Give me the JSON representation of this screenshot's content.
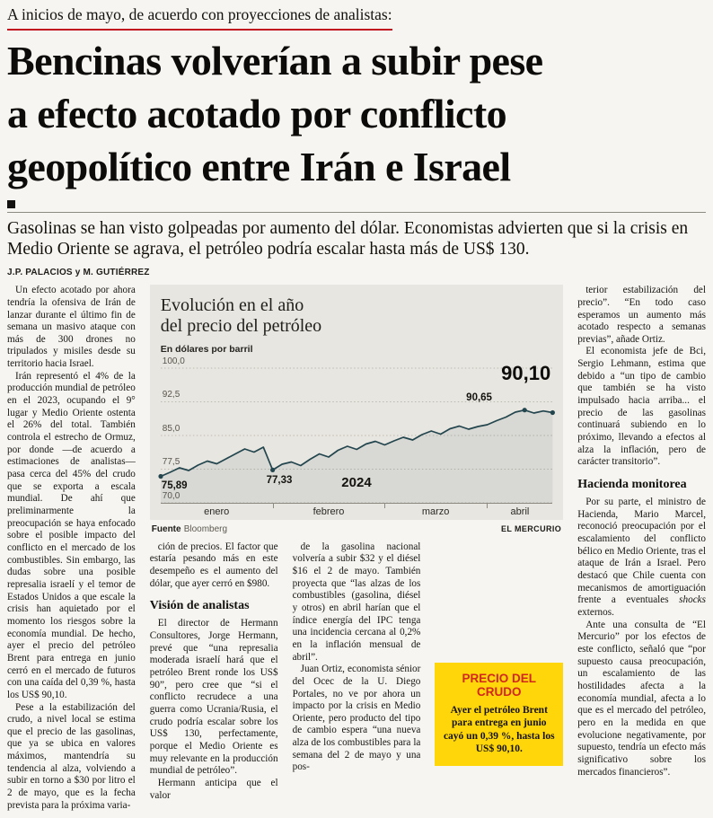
{
  "header": {
    "kicker": "A inicios de mayo, de acuerdo con proyecciones de analistas:",
    "headline_lines": [
      "Bencinas volverían a subir pese",
      "a efecto acotado por conflicto",
      "geopolítico entre Irán e Israel"
    ],
    "lead": "Gasolinas se han visto golpeadas por aumento del dólar. Economistas advierten que si la crisis en Medio Oriente se agrava, el petróleo podría escalar hasta más de US$ 130.",
    "byline": "J.P. PALACIOS y M. GUTIÉRREZ"
  },
  "body": {
    "col1": [
      "Un efecto acotado por ahora tendría la ofensiva de Irán de lanzar durante el último fin de semana un masivo ataque con más de 300 drones no tripulados y misiles desde su territorio hacia Israel.",
      "Irán representó el 4% de la producción mundial de petróleo en el 2023, ocupando el 9° lugar y Medio Oriente ostenta el 26% del total. También controla el estrecho de Ormuz, por donde —de acuerdo a estimaciones de analistas— pasa cerca del 45% del crudo que se exporta a escala mundial. De ahí que preliminarmente la preocupación se haya enfocado sobre el posible impacto del conflicto en el mercado de los combustibles. Sin embargo, las dudas sobre una posible represalia israelí y el temor de Estados Unidos a que escale la crisis han aquietado por el momento los riesgos sobre la economía mundial. De hecho, ayer el precio del petróleo Brent para entrega en junio cerró en el mercado de futuros con una caída del 0,39 %, hasta los US$ 90,10.",
      "Pese a la estabilización del crudo, a nivel local se estima que el precio de las gasolinas, que ya se ubica en valores máximos, mantendría su tendencia al alza, volviendo a subir en torno a $30 por litro el 2 de mayo, que es la fecha prevista para la próxima varia-"
    ],
    "col2": {
      "p1": "ción de precios. El factor que estaría pesando más en este desempeño es el aumento del dólar, que ayer cerró en $980.",
      "section": "Visión de analistas",
      "p2": "El director de Hermann Consultores, Jorge Hermann, prevé que “una represalia moderada israelí hará que el petróleo Brent ronde los US$ 90”, pero cree que “si el conflicto recrudece a una guerra como Ucrania/Rusia, el crudo podría escalar sobre los US$ 130, perfectamente, porque el Medio Oriente es muy relevante en la producción mundial de petróleo”.",
      "p3": "Hermann anticipa que el valor"
    },
    "col3": {
      "p1": "de la gasolina nacional volvería a subir $32 y el diésel $16 el 2 de mayo. También proyecta que “las alzas de los combustibles (gasolina, diésel y otros) en abril harían que el índice energía del IPC tenga una incidencia cercana al 0,2% en la inflación mensual de abril”.",
      "p2": "Juan Ortiz, economista sénior del Ocec de la U. Diego Portales, no ve por ahora un impacto por la crisis en Medio Oriente, pero producto del tipo de cambio espera “una nueva alza de los combustibles para la semana del 2 de mayo y una pos-"
    },
    "col5": {
      "p1": "terior estabilización del precio”. “En todo caso esperamos un aumento más acotado respecto a semanas previas”, añade Ortiz.",
      "p2": "El economista jefe de Bci, Sergio Lehmann, estima que debido a “un tipo de cambio que también se ha visto impulsado hacia arriba... el precio de las gasolinas continuará subiendo en lo próximo, llevando a efectos al alza la inflación, pero de carácter transitorio”.",
      "section": "Hacienda monitorea",
      "p3a": "Por su parte, el ministro de Hacienda, Mario Marcel, reconoció preocupación por el escalamiento del conflicto bélico en Medio Oriente, tras el ataque de Irán a Israel. Pero destacó que Chile cuenta con mecanismos de amortiguación frente a eventuales ",
      "p3_italic": "shocks",
      "p3b": " externos.",
      "p4": "Ante una consulta de “El Mercurio” por los efectos de este conflicto, señaló que “por supuesto causa preocupación, un escalamiento de las hostilidades afecta a la economía mundial, afecta a lo que es el mercado del petróleo, pero en la medida en que evolucione negativamente, por supuesto, tendría un efecto más significativo sobre los mercados financieros”."
    }
  },
  "chart": {
    "title_lines": [
      "Evolución en el año",
      "del precio del petróleo"
    ],
    "unit_label": "En dólares por barril",
    "big_value": "90,10",
    "peak_label": "90,65",
    "start_label": "75,89",
    "dip_label": "77,33",
    "year_label": "2024",
    "months": [
      "enero",
      "febrero",
      "marzo",
      "abril"
    ],
    "y_ticks": [
      "100,0",
      "92,5",
      "85,0",
      "77,5",
      "70,0"
    ],
    "source_label": "Fuente",
    "source_value": "Bloomberg",
    "credit": "EL MERCURIO"
  },
  "chart_data": {
    "type": "line",
    "title": "Evolución en el año del precio del petróleo",
    "ylabel": "En dólares por barril",
    "x_range": "enero–abril 2024",
    "ylim": [
      70,
      100
    ],
    "y_ticks_values": [
      100.0,
      92.5,
      85.0,
      77.5,
      70.0
    ],
    "months": [
      "enero",
      "febrero",
      "marzo",
      "abril"
    ],
    "month_start_indices": [
      0,
      12,
      24,
      35
    ],
    "series": [
      {
        "name": "Precio del petróleo Brent (US$ por barril)",
        "values": [
          75.89,
          76.8,
          77.8,
          77.2,
          78.4,
          79.3,
          78.7,
          79.8,
          80.9,
          82.0,
          81.3,
          82.4,
          77.33,
          78.6,
          79.1,
          78.3,
          79.7,
          80.9,
          80.2,
          81.7,
          82.6,
          81.9,
          83.1,
          83.7,
          82.9,
          83.8,
          84.6,
          84.0,
          85.2,
          86.0,
          85.3,
          86.5,
          87.1,
          86.4,
          87.0,
          87.4,
          88.3,
          89.1,
          90.2,
          90.65,
          90.0,
          90.45,
          90.1
        ]
      }
    ],
    "marker_indices": [
      0,
      12,
      39,
      42
    ],
    "annotations": [
      {
        "label": "75,89",
        "index": 0
      },
      {
        "label": "77,33",
        "index": 12
      },
      {
        "label": "90,65",
        "index": 39
      },
      {
        "label": "90,10",
        "index": 42
      }
    ],
    "legend": "none",
    "grid": true,
    "source": "Bloomberg",
    "credit": "EL MERCURIO"
  },
  "crude_box": {
    "title": "PRECIO DEL CRUDO",
    "text": "Ayer el petróleo Brent para entrega en junio cayó un 0,39 %, hasta los US$ 90,10."
  }
}
